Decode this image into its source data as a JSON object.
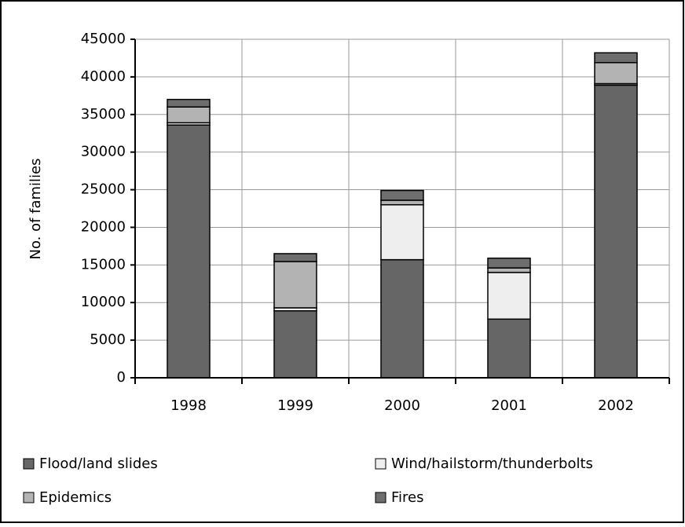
{
  "chart_data": {
    "type": "stacked-bar",
    "categories": [
      "1998",
      "1999",
      "2000",
      "2001",
      "2002"
    ],
    "y_label": "No. of families",
    "series": [
      {
        "name": "Flood/land slides",
        "color": "#666666",
        "values": [
          33600,
          8900,
          15700,
          7800,
          38900
        ]
      },
      {
        "name": "Wind/hailstorm/thunderbolts",
        "color": "#eeeeee",
        "values": [
          300,
          400,
          7300,
          6200,
          200
        ]
      },
      {
        "name": "Epidemics",
        "color": "#b3b3b3",
        "values": [
          2100,
          6150,
          600,
          600,
          2800
        ]
      },
      {
        "name": "Fires",
        "color": "#6e6e6e",
        "values": [
          1000,
          1050,
          1300,
          1300,
          1300
        ]
      }
    ],
    "ylim": [
      0,
      45000
    ],
    "yticks": [
      0,
      5000,
      10000,
      15000,
      20000,
      25000,
      30000,
      35000,
      40000,
      45000
    ],
    "grid": true,
    "legend": "bottom"
  }
}
